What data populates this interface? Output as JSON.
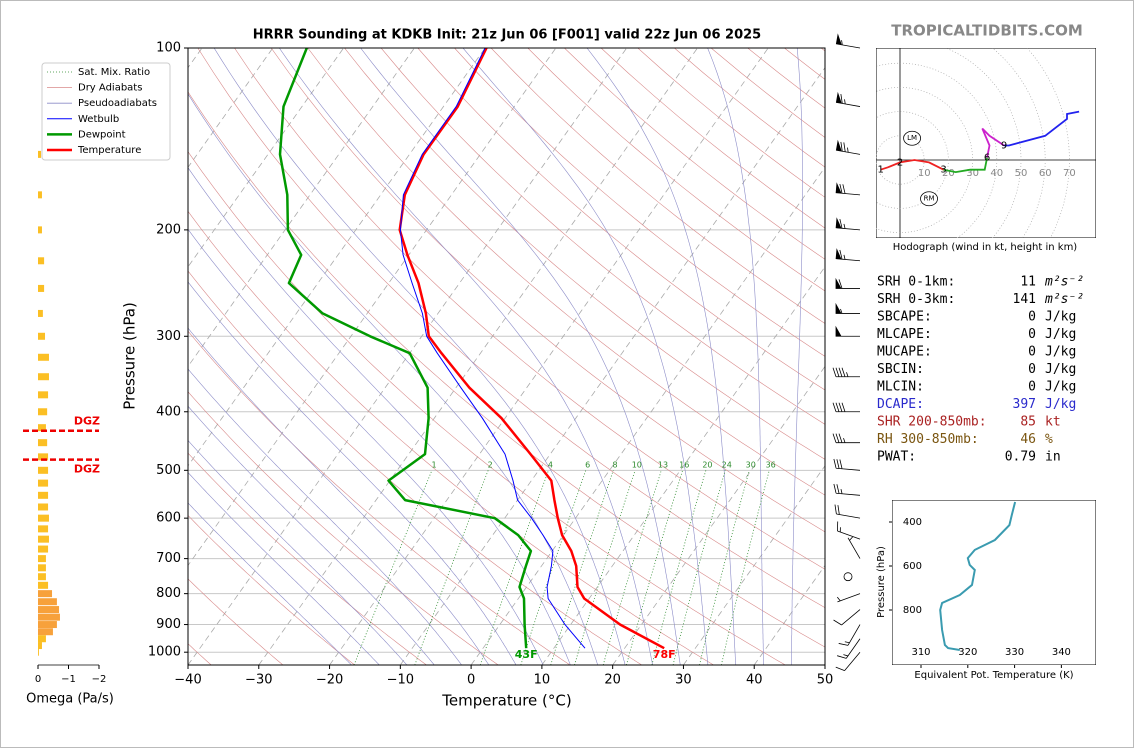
{
  "watermark": "TROPICALTIDBITS.COM",
  "parameters": [
    {
      "label": "SRH 0-1km:",
      "value": 11,
      "unit": "m²s⁻²"
    },
    {
      "label": "SRH 0-3km:",
      "value": 141,
      "unit": "m²s⁻²"
    },
    {
      "label": "SBCAPE:",
      "value": 0,
      "unit": "J/kg"
    },
    {
      "label": "MLCAPE:",
      "value": 0,
      "unit": "J/kg"
    },
    {
      "label": "MUCAPE:",
      "value": 0,
      "unit": "J/kg"
    },
    {
      "label": "SBCIN:",
      "value": 0,
      "unit": "J/kg"
    },
    {
      "label": "MLCIN:",
      "value": 0,
      "unit": "J/kg"
    },
    {
      "label": "DCAPE:",
      "value": 397,
      "unit": "J/kg",
      "color": "#2a2acc"
    },
    {
      "label": "SHR 200-850mb:",
      "value": 85,
      "unit": "kt",
      "color": "#aa2222"
    },
    {
      "label": "RH 300-850mb:",
      "value": 46,
      "unit": "%",
      "color": "#7a5510"
    },
    {
      "label": "PWAT:",
      "value": 0.79,
      "unit": "in"
    }
  ],
  "chart_data": [
    {
      "type": "skewt",
      "title": "HRRR Sounding at KDKB Init: 21z Jun 06 [F001] valid 22z Jun 06 2025",
      "xlabel": "Temperature (°C)",
      "ylabel": "Pressure (hPa)",
      "xlim": [
        -40,
        50
      ],
      "ylim": [
        1050,
        100
      ],
      "log_y": true,
      "grid": true,
      "xticks": [
        {
          "value": -40,
          "label": "−40"
        },
        {
          "value": -30,
          "label": "−30"
        },
        {
          "value": -20,
          "label": "−20"
        },
        {
          "value": -10,
          "label": "−10"
        },
        0,
        10,
        20,
        30,
        40,
        50
      ],
      "yticks": [
        100,
        200,
        300,
        400,
        500,
        600,
        700,
        800,
        900,
        1000
      ],
      "pressure": [
        985,
        900,
        815,
        780,
        720,
        680,
        640,
        600,
        560,
        520,
        470,
        410,
        365,
        320,
        300,
        275,
        245,
        220,
        200,
        175,
        150,
        125,
        100
      ],
      "series": [
        {
          "name": "Temperature",
          "color": "#ff0000",
          "width": 2.5,
          "surface_label": "78F",
          "values": [
            25.6,
            17.0,
            9.3,
            7.2,
            4.9,
            2.7,
            -0.2,
            -2.5,
            -4.8,
            -7.2,
            -12.8,
            -20.5,
            -28.1,
            -35.5,
            -39.0,
            -41.7,
            -45.8,
            -50.2,
            -53.8,
            -56.6,
            -58.0,
            -58.0,
            -59.8
          ]
        },
        {
          "name": "Dewpoint",
          "color": "#009900",
          "width": 2.5,
          "surface_label": "43F",
          "values": [
            6.1,
            3.5,
            0.8,
            -1.0,
            -2.2,
            -3.0,
            -6.4,
            -11.4,
            -25.9,
            -30.2,
            -27.7,
            -30.8,
            -34.0,
            -40.0,
            -47.3,
            -56.3,
            -64.1,
            -65.2,
            -69.6,
            -73.2,
            -78.3,
            -82.6,
            -85.2
          ]
        },
        {
          "name": "Wetbulb",
          "color": "#0000ff",
          "width": 1,
          "values": [
            14.4,
            9.2,
            4.2,
            2.9,
            1.4,
            0.1,
            -2.9,
            -6.2,
            -10.0,
            -12.6,
            -16.4,
            -23.2,
            -29.3,
            -36.1,
            -39.3,
            -42.2,
            -46.7,
            -50.8,
            -53.7,
            -56.8,
            -58.2,
            -58.2,
            -60.0
          ]
        }
      ],
      "mixing_ratio": {
        "name": "Sat. Mix. Ratio",
        "color": "#2e8b2e",
        "values": [
          1,
          2,
          4,
          6,
          8,
          10,
          13,
          16,
          20,
          24,
          30,
          36
        ]
      },
      "dry_adiabats": {
        "name": "Dry Adiabats",
        "color": "#d88a8a"
      },
      "pseudoadiabats": {
        "name": "Pseudoadiabats",
        "color": "#8c8cc8"
      },
      "winds": {
        "pressure": [
          1000,
          950,
          900,
          850,
          800,
          750,
          700,
          650,
          600,
          550,
          500,
          450,
          400,
          350,
          300,
          275,
          250,
          225,
          200,
          175,
          150,
          125,
          100
        ],
        "speed": [
          10,
          15,
          15,
          10,
          5,
          0,
          5,
          15,
          20,
          25,
          30,
          35,
          40,
          45,
          50,
          55,
          60,
          65,
          65,
          70,
          75,
          65,
          55
        ],
        "direction": [
          220,
          215,
          210,
          230,
          250,
          0,
          330,
          290,
          280,
          275,
          275,
          270,
          270,
          270,
          270,
          270,
          270,
          275,
          275,
          275,
          280,
          280,
          280
        ]
      }
    },
    {
      "type": "hodograph",
      "caption": "Hodograph (wind in kt, height in km)",
      "xticks": [
        10,
        20,
        30,
        40,
        50,
        60,
        70
      ],
      "series": [
        {
          "color": "#ee2222",
          "u": [
            -8,
            -5,
            0,
            6,
            12,
            18
          ],
          "v": [
            -4,
            -3,
            -1,
            0,
            -1,
            -4
          ]
        },
        {
          "color": "#22aa22",
          "u": [
            18,
            23,
            29,
            35,
            36
          ],
          "v": [
            -4,
            -5,
            -4,
            -4,
            1
          ]
        },
        {
          "color": "#cc22cc",
          "u": [
            36,
            37,
            34,
            37,
            43
          ],
          "v": [
            1,
            6,
            13,
            10,
            6
          ]
        },
        {
          "color": "#2222ee",
          "u": [
            43,
            45,
            60,
            69,
            69,
            74
          ],
          "v": [
            6,
            6,
            10,
            17,
            19,
            20
          ]
        }
      ],
      "height_markers": {
        "km": [
          1,
          2,
          3,
          6,
          9
        ],
        "u": [
          -8,
          0,
          18,
          36,
          43
        ],
        "v": [
          -4,
          -1,
          -4,
          1,
          6
        ]
      },
      "storm_motion": {
        "labels": [
          "LM",
          "RM"
        ],
        "u": [
          5,
          12
        ],
        "v": [
          9,
          -16
        ]
      }
    },
    {
      "type": "profile",
      "xlabel": "Equivalent Pot. Temperature (K)",
      "ylabel": "Pressure (hPa)",
      "color": "#3a9bb0",
      "xlim": [
        303.8,
        347.4
      ],
      "ylim": [
        1050,
        300
      ],
      "xticks": [
        310,
        320,
        330,
        340
      ],
      "yticks": [
        400,
        600,
        800
      ],
      "pressure": [
        309,
        368,
        414,
        482,
        527,
        564,
        595,
        618,
        686,
        732,
        768,
        800,
        891,
        959,
        973,
        982
      ],
      "values": [
        330.1,
        329.4,
        328.9,
        325.8,
        321.5,
        320.0,
        320.4,
        321.5,
        320.9,
        318.3,
        314.5,
        314.1,
        314.5,
        315.1,
        315.8,
        318.3
      ]
    },
    {
      "type": "omega",
      "xlabel": "Omega (Pa/s)",
      "xlim": [
        0,
        -2
      ],
      "ylim": [
        1050,
        100
      ],
      "xticks": [
        0,
        {
          "value": -1,
          "label": "−1"
        },
        {
          "value": -2,
          "label": "−2"
        }
      ],
      "pressure": [
        150,
        175,
        200,
        225,
        250,
        275,
        300,
        325,
        350,
        375,
        400,
        425,
        450,
        475,
        500,
        525,
        550,
        575,
        600,
        625,
        650,
        675,
        700,
        725,
        750,
        775,
        800,
        825,
        850,
        875,
        900,
        925,
        950,
        975,
        1000
      ],
      "values": [
        -0.1,
        -0.13,
        -0.13,
        -0.2,
        -0.2,
        -0.16,
        -0.23,
        -0.36,
        -0.36,
        -0.33,
        -0.3,
        -0.26,
        -0.3,
        -0.33,
        -0.33,
        -0.33,
        -0.33,
        -0.33,
        -0.36,
        -0.33,
        -0.36,
        -0.33,
        -0.26,
        -0.26,
        -0.26,
        -0.33,
        -0.46,
        -0.62,
        -0.69,
        -0.72,
        -0.62,
        -0.49,
        -0.26,
        -0.13,
        -0.03
      ],
      "colors": [
        "#fbbf24",
        "#fbbf24",
        "#fbbf24",
        "#fbbf24",
        "#fbbf24",
        "#fbbf24",
        "#fbbf24",
        "#fbbf24",
        "#fbbf24",
        "#fbbf24",
        "#fbbf24",
        "#fbbf24",
        "#fbbf24",
        "#fbbf24",
        "#fbbf24",
        "#fbbf24",
        "#fbbf24",
        "#fbbf24",
        "#fbbf24",
        "#fbbf24",
        "#fbbf24",
        "#fbbf24",
        "#fbbf24",
        "#fbbf24",
        "#fbbf24",
        "#fbbf24",
        "#f7a13b",
        "#f7a13b",
        "#f7a13b",
        "#f7a13b",
        "#f7a13b",
        "#f7a13b",
        "#fbbf24",
        "#fbbf24",
        "#fbbf24"
      ],
      "dgz": [
        {
          "label": "DGZ",
          "pressure": 430
        },
        {
          "label": "DGZ",
          "pressure": 480
        }
      ]
    }
  ]
}
